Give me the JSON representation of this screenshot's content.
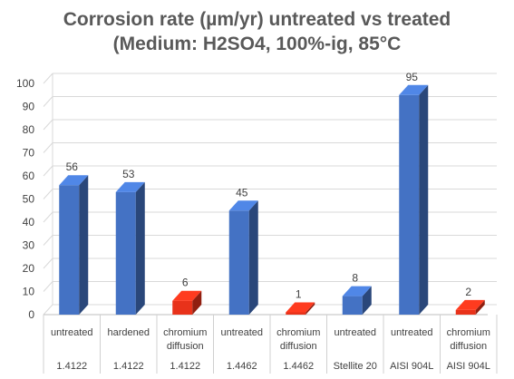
{
  "chart_data": {
    "type": "bar",
    "title_lines": [
      "Corrosion rate (µm/yr) untreated vs treated",
      "(Medium: H2SO4, 100%-ig, 85°C"
    ],
    "ylim": [
      0,
      100
    ],
    "yticks": [
      0,
      10,
      20,
      30,
      40,
      50,
      60,
      70,
      80,
      90,
      100
    ],
    "grid": true,
    "three_d": true,
    "colors": {
      "untreated": "#4472c4",
      "treated": "#e8321a",
      "grid": "#d9d9d9",
      "text": "#404040"
    },
    "bars": [
      {
        "treatment": "untreated",
        "material": "1.4122",
        "value": 56,
        "group": "untreated"
      },
      {
        "treatment": "hardened",
        "material": "1.4122",
        "value": 53,
        "group": "untreated"
      },
      {
        "treatment": "chromium diffusion",
        "material": "1.4122",
        "value": 6,
        "group": "treated"
      },
      {
        "treatment": "untreated",
        "material": "1.4462",
        "value": 45,
        "group": "untreated"
      },
      {
        "treatment": "chromium diffusion",
        "material": "1.4462",
        "value": 1,
        "group": "treated"
      },
      {
        "treatment": "untreated",
        "material": "Stellite 20",
        "value": 8,
        "group": "untreated"
      },
      {
        "treatment": "untreated",
        "material": "AISI 904L",
        "value": 95,
        "group": "untreated"
      },
      {
        "treatment": "chromium diffusion",
        "material": "AISI 904L",
        "value": 2,
        "group": "treated"
      }
    ]
  }
}
